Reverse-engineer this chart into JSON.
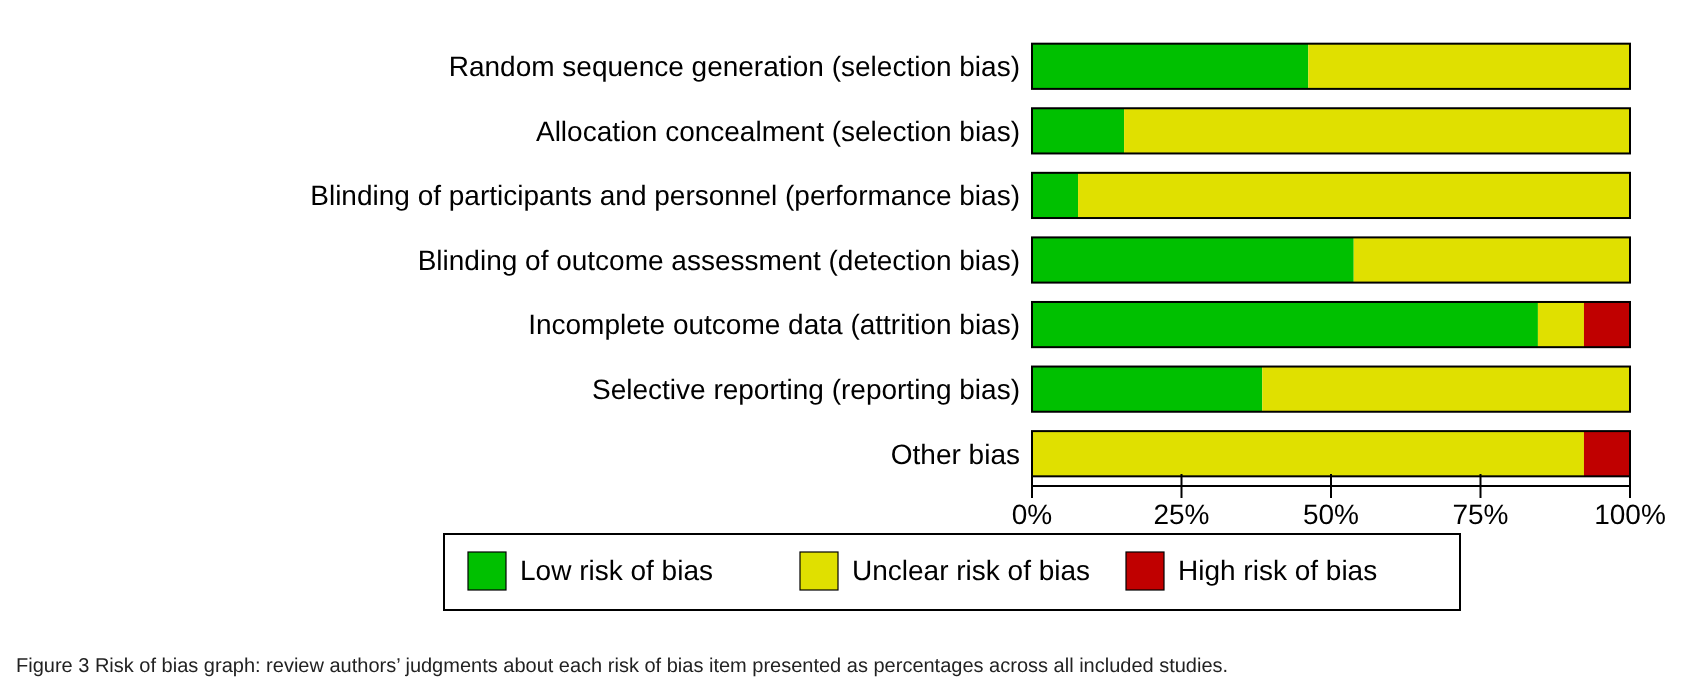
{
  "chart_data": {
    "type": "bar",
    "orientation": "horizontal",
    "stacked": true,
    "categories": [
      "Random sequence generation (selection bias)",
      "Allocation concealment (selection bias)",
      "Blinding of participants and personnel (performance bias)",
      "Blinding of outcome assessment (detection bias)",
      "Incomplete outcome data (attrition bias)",
      "Selective reporting (reporting bias)",
      "Other bias"
    ],
    "series": [
      {
        "name": "Low risk of bias",
        "color": "#00c000",
        "values": [
          46.2,
          15.4,
          7.7,
          53.8,
          84.6,
          38.5,
          0
        ]
      },
      {
        "name": "Unclear risk of bias",
        "color": "#e0e000",
        "values": [
          53.8,
          84.6,
          92.3,
          46.2,
          7.7,
          61.5,
          92.3
        ]
      },
      {
        "name": "High risk of bias",
        "color": "#c00000",
        "values": [
          0,
          0,
          0,
          0,
          7.7,
          0,
          7.7
        ]
      }
    ],
    "xlim": [
      0,
      100
    ],
    "xticks": [
      {
        "value": 0,
        "label": "0%"
      },
      {
        "value": 25,
        "label": "25%"
      },
      {
        "value": 50,
        "label": "50%"
      },
      {
        "value": 75,
        "label": "75%"
      },
      {
        "value": 100,
        "label": "100%"
      }
    ],
    "legend": "bottom",
    "grid": false,
    "annotations": [
      "Figure 3 Risk of bias graph: review authors’ judgments about each risk of bias item presented as percentages across all included studies."
    ]
  }
}
